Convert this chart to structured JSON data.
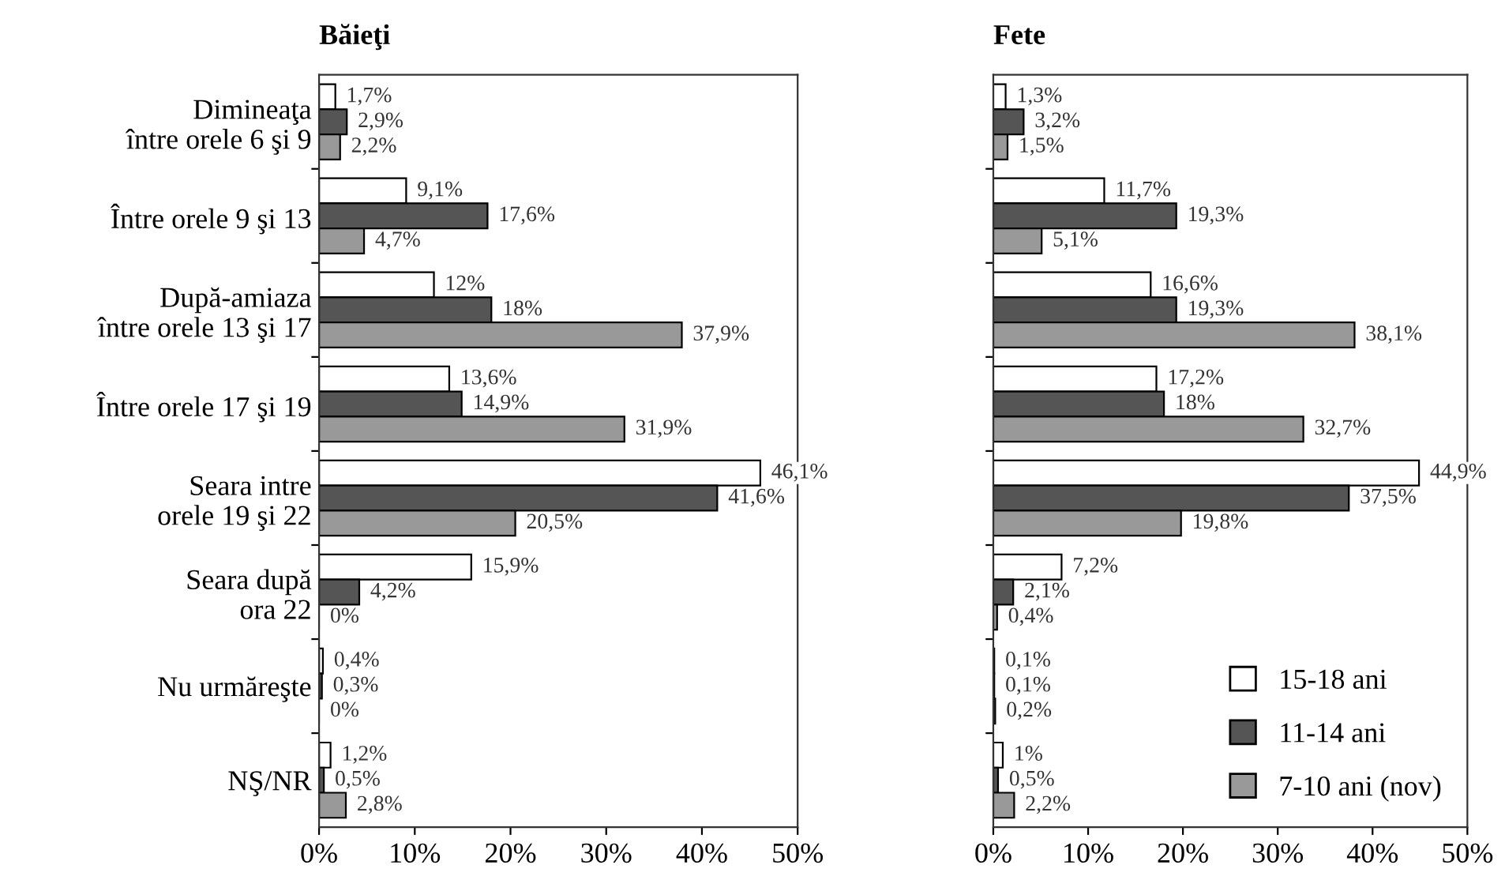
{
  "chart_data": [
    {
      "type": "bar",
      "orientation": "horizontal",
      "title": "Băieţi",
      "categories": [
        "Dimineaţa\nîntre orele 6 şi 9",
        "Între orele 9 şi 13",
        "După-amiaza\nîntre orele 13 şi 17",
        "Între orele 17 şi 19",
        "Seara intre\norele 19 şi 22",
        "Seara după\nora 22",
        "Nu urmăreşte",
        "NŞ/NR"
      ],
      "series": [
        {
          "color": "#ffffff",
          "values": [
            1.7,
            9.1,
            12,
            13.6,
            46.1,
            15.9,
            0.4,
            1.2
          ],
          "value_labels": [
            "1,7%",
            "9,1%",
            "12%",
            "13,6%",
            "46,1%",
            "15,9%",
            "0,4%",
            "1,2%"
          ]
        },
        {
          "color": "#555555",
          "values": [
            2.9,
            17.6,
            18,
            14.9,
            41.6,
            4.2,
            0.3,
            0.5
          ],
          "value_labels": [
            "2,9%",
            "17,6%",
            "18%",
            "14,9%",
            "41,6%",
            "4,2%",
            "0,3%",
            "0,5%"
          ]
        },
        {
          "color": "#999999",
          "values": [
            2.2,
            4.7,
            37.9,
            31.9,
            20.5,
            0,
            0,
            2.8
          ],
          "value_labels": [
            "2,2%",
            "4,7%",
            "37,9%",
            "31,9%",
            "20,5%",
            "0%",
            "0%",
            "2,8%"
          ]
        }
      ],
      "xlim": [
        0,
        50
      ],
      "xticks": [
        {
          "value": 0,
          "label": "0%"
        },
        {
          "value": 10,
          "label": "10%"
        },
        {
          "value": 20,
          "label": "20%"
        },
        {
          "value": 30,
          "label": "30%"
        },
        {
          "value": 40,
          "label": "40%"
        },
        {
          "value": 50,
          "label": "50%"
        }
      ],
      "grid": false,
      "legend": false
    },
    {
      "type": "bar",
      "orientation": "horizontal",
      "title": "Fete",
      "categories": [
        null,
        null,
        null,
        null,
        null,
        null,
        null,
        null
      ],
      "series": [
        {
          "name": "15-18 ani",
          "color": "#ffffff",
          "values": [
            1.3,
            11.7,
            16.6,
            17.2,
            44.9,
            7.2,
            0.1,
            1
          ],
          "value_labels": [
            "1,3%",
            "11,7%",
            "16,6%",
            "17,2%",
            "44,9%",
            "7,2%",
            "0,1%",
            "1%"
          ]
        },
        {
          "name": "11-14 ani",
          "color": "#555555",
          "values": [
            3.2,
            19.3,
            19.3,
            18,
            37.5,
            2.1,
            0.1,
            0.5
          ],
          "value_labels": [
            "3,2%",
            "19,3%",
            "19,3%",
            "18%",
            "37,5%",
            "2,1%",
            "0,1%",
            "0,5%"
          ]
        },
        {
          "name": "7-10 ani (nov)",
          "color": "#999999",
          "values": [
            1.5,
            5.1,
            38.1,
            32.7,
            19.8,
            0.4,
            0.2,
            2.2
          ],
          "value_labels": [
            "1,5%",
            "5,1%",
            "38,1%",
            "32,7%",
            "19,8%",
            "0,4%",
            "0,2%",
            "2,2%"
          ]
        }
      ],
      "xlim": [
        0,
        50
      ],
      "xticks": [
        {
          "value": 0,
          "label": "0%"
        },
        {
          "value": 10,
          "label": "10%"
        },
        {
          "value": 20,
          "label": "20%"
        },
        {
          "value": 30,
          "label": "30%"
        },
        {
          "value": 40,
          "label": "40%"
        },
        {
          "value": 50,
          "label": "50%"
        }
      ],
      "tick_labels": "x",
      "grid": false,
      "legend": "bottom right"
    }
  ]
}
